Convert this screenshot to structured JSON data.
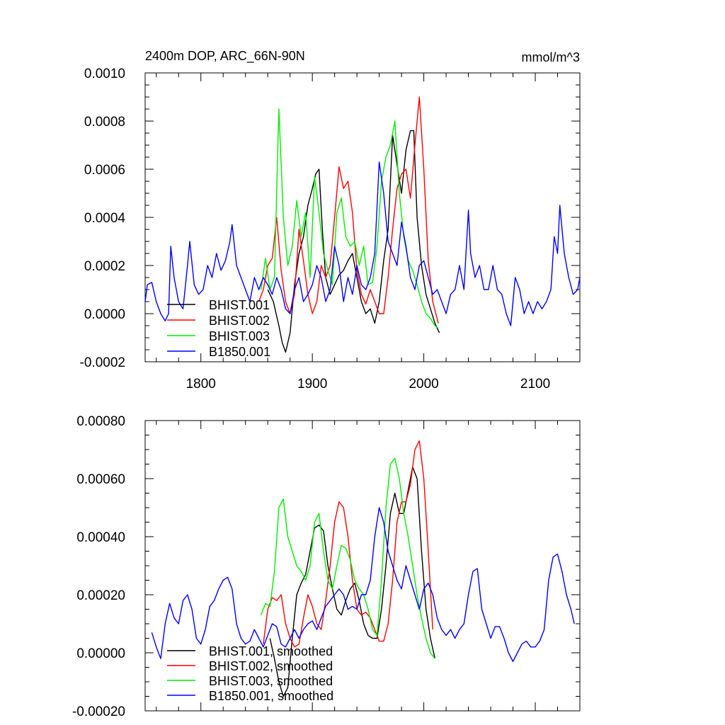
{
  "chart_data": [
    {
      "type": "line",
      "title": "2400m DOP, ARC_66N-90N",
      "units": "mmol/m^3",
      "xlim": [
        1750,
        2140
      ],
      "ylim": [
        -0.0002,
        0.001
      ],
      "x_ticks": [
        1800,
        1900,
        2000,
        2100
      ],
      "x_tick_labels": [
        "1800",
        "1900",
        "2000",
        "2100"
      ],
      "y_ticks": [
        -0.0002,
        0,
        0.0002,
        0.0004,
        0.0006,
        0.0008,
        0.001
      ],
      "y_tick_labels": [
        "-0.0002",
        "0.0000",
        "0.0002",
        "0.0004",
        "0.0006",
        "0.0008",
        "0.0010"
      ],
      "legend_position": "bottom-left",
      "grid": false,
      "series": [
        {
          "name": "BHIST.001",
          "color": "#000000",
          "x": [
            1860,
            1865,
            1870,
            1873,
            1876,
            1880,
            1884,
            1888,
            1892,
            1896,
            1900,
            1903,
            1906,
            1909,
            1912,
            1916,
            1920,
            1924,
            1928,
            1932,
            1936,
            1940,
            1944,
            1948,
            1952,
            1956,
            1960,
            1964,
            1968,
            1972,
            1976,
            1980,
            1984,
            1988,
            1991,
            1994,
            1998,
            2002,
            2006,
            2010,
            2014
          ],
          "y": [
            0.0001,
            5e-05,
            -5e-05,
            -0.00012,
            -0.00016,
            -8e-05,
            0.00012,
            0.00025,
            0.00032,
            0.00045,
            0.00052,
            0.00058,
            0.0006,
            0.00035,
            0.00015,
            8e-05,
            0.00012,
            0.00016,
            0.00018,
            0.00022,
            0.00025,
            0.00015,
            5e-05,
            0.0,
            2e-05,
            -4e-05,
            5e-05,
            0.00022,
            0.00035,
            0.00074,
            0.00062,
            0.0005,
            0.00068,
            0.00076,
            0.00076,
            0.0004,
            0.0002,
            8e-05,
            2e-05,
            -4e-05,
            -8e-05
          ]
        },
        {
          "name": "BHIST.002",
          "color": "#ff0000",
          "x": [
            1852,
            1856,
            1860,
            1864,
            1868,
            1872,
            1876,
            1880,
            1884,
            1888,
            1892,
            1896,
            1900,
            1904,
            1908,
            1912,
            1916,
            1920,
            1924,
            1928,
            1932,
            1936,
            1940,
            1944,
            1948,
            1952,
            1956,
            1960,
            1964,
            1968,
            1972,
            1976,
            1980,
            1984,
            1988,
            1992,
            1996,
            2000,
            2004,
            2008,
            2013
          ],
          "y": [
            5e-05,
            0.0001,
            0.0002,
            0.00023,
            0.0004,
            0.00018,
            5e-05,
            0.0,
            8e-05,
            0.00035,
            0.00022,
            8e-05,
            0.0,
            5e-05,
            0.0002,
            0.00015,
            0.0002,
            0.0004,
            0.00061,
            0.00052,
            0.00055,
            0.00042,
            0.00018,
            8e-05,
            4e-05,
            0.0001,
            5e-05,
            0.0,
            0.0,
            0.00015,
            0.00035,
            0.00052,
            0.00058,
            0.0006,
            0.00048,
            0.0007,
            0.0009,
            0.0006,
            0.00022,
            5e-05,
            -4e-05
          ]
        },
        {
          "name": "BHIST.003",
          "color": "#00ee00",
          "x": [
            1854,
            1858,
            1862,
            1866,
            1870,
            1874,
            1878,
            1882,
            1886,
            1890,
            1894,
            1898,
            1902,
            1906,
            1910,
            1914,
            1918,
            1922,
            1926,
            1930,
            1934,
            1938,
            1942,
            1946,
            1950,
            1954,
            1958,
            1962,
            1966,
            1970,
            1974,
            1978,
            1982,
            1986,
            1990,
            1994,
            1998,
            2002,
            2006,
            2010,
            2013
          ],
          "y": [
            0.0001,
            0.00023,
            0.0001,
            0.00015,
            0.00085,
            0.0004,
            0.0002,
            0.00028,
            0.00047,
            0.00032,
            0.00042,
            0.00015,
            0.00057,
            0.00042,
            0.00025,
            0.00018,
            0.00012,
            0.00042,
            0.00048,
            0.00032,
            0.00028,
            0.0003,
            0.0002,
            0.00028,
            0.00012,
            0.00013,
            0.00028,
            0.00055,
            0.00065,
            0.0007,
            0.0008,
            0.0005,
            0.00032,
            0.00022,
            0.00018,
            0.00012,
            5e-05,
            0.0,
            -2e-05,
            -5e-05,
            -6e-05
          ]
        },
        {
          "name": "B1850.001",
          "color": "#0000ff",
          "x": [
            1750,
            1752,
            1756,
            1760,
            1764,
            1768,
            1771,
            1773,
            1776,
            1780,
            1784,
            1788,
            1790,
            1794,
            1798,
            1802,
            1806,
            1810,
            1814,
            1818,
            1822,
            1826,
            1828,
            1832,
            1836,
            1840,
            1844,
            1848,
            1852,
            1856,
            1860,
            1864,
            1868,
            1872,
            1876,
            1880,
            1884,
            1888,
            1892,
            1896,
            1900,
            1904,
            1908,
            1912,
            1916,
            1920,
            1924,
            1928,
            1932,
            1936,
            1940,
            1944,
            1948,
            1952,
            1956,
            1960,
            1964,
            1968,
            1972,
            1976,
            1980,
            1984,
            1988,
            1992,
            1996,
            2000,
            2004,
            2008,
            2012,
            2016,
            2020,
            2024,
            2028,
            2032,
            2036,
            2040,
            2042,
            2046,
            2050,
            2054,
            2058,
            2062,
            2066,
            2070,
            2074,
            2078,
            2082,
            2086,
            2090,
            2094,
            2098,
            2102,
            2106,
            2110,
            2114,
            2117,
            2120,
            2122,
            2126,
            2130,
            2134,
            2138,
            2140
          ],
          "y": [
            5e-05,
            0.00012,
            0.00013,
            5e-05,
            0.0,
            -3e-05,
            0.0,
            0.00028,
            0.00015,
            5e-05,
            2e-05,
            0.0002,
            0.0003,
            0.00012,
            8e-05,
            0.0001,
            0.0002,
            0.00015,
            0.00025,
            0.00018,
            0.00022,
            0.0003,
            0.00037,
            0.0002,
            0.00015,
            0.0001,
            5e-05,
            0.00015,
            0.0001,
            0.00015,
            0.00012,
            8e-05,
            0.00015,
            0.0001,
            2e-05,
            0.0,
            0.0001,
            0.00015,
            5e-05,
            8e-05,
            0.00012,
            0.0002,
            0.00015,
            5e-05,
            0.0001,
            0.00028,
            0.0002,
            5e-05,
            0.00015,
            8e-05,
            0.0002,
            0.00012,
            0.0001,
            0.00015,
            0.00025,
            0.00063,
            0.0005,
            0.0003,
            0.00025,
            0.0002,
            0.00038,
            0.00028,
            0.00015,
            0.0001,
            0.0002,
            0.00022,
            0.00015,
            8e-05,
            0.0001,
            5e-05,
            0.0,
            8e-05,
            0.0001,
            0.0002,
            0.0001,
            0.00043,
            0.00025,
            0.00015,
            0.0002,
            0.0001,
            0.0001,
            0.0002,
            0.0001,
            8e-05,
            0.0,
            -5e-05,
            0.00015,
            0.0001,
            0.0,
            5e-05,
            0.0,
            5e-05,
            2e-05,
            5e-05,
            0.0001,
            0.00032,
            0.00025,
            0.00045,
            0.00025,
            0.00015,
            8e-05,
            0.0001,
            0.00015
          ]
        }
      ]
    },
    {
      "type": "line",
      "title": "",
      "xlim": [
        1750,
        2140
      ],
      "ylim": [
        -0.0002,
        0.0008
      ],
      "x_ticks": [
        1800,
        1900,
        2000,
        2100
      ],
      "x_tick_labels": [
        "",
        "",
        "",
        ""
      ],
      "y_ticks": [
        -0.0002,
        0,
        0.0002,
        0.0004,
        0.0006,
        0.0008
      ],
      "y_tick_labels": [
        "-0.00020",
        "0.00000",
        "0.00020",
        "0.00040",
        "0.00060",
        "0.00080"
      ],
      "legend_position": "bottom-left",
      "grid": false,
      "series": [
        {
          "name": "BHIST.001, smoothed",
          "color": "#000000",
          "x": [
            1862,
            1866,
            1870,
            1874,
            1878,
            1882,
            1886,
            1890,
            1894,
            1898,
            1902,
            1906,
            1910,
            1914,
            1918,
            1922,
            1926,
            1930,
            1934,
            1938,
            1942,
            1946,
            1950,
            1954,
            1958,
            1962,
            1966,
            1970,
            1974,
            1978,
            1982,
            1986,
            1990,
            1994,
            1998,
            2002,
            2006,
            2010
          ],
          "y": [
            5e-05,
            -2e-05,
            -0.0001,
            -0.00015,
            -0.00012,
            5e-05,
            0.0002,
            0.00024,
            0.00027,
            0.00035,
            0.00043,
            0.00044,
            0.00042,
            0.0003,
            0.00022,
            0.00015,
            0.00013,
            0.00018,
            0.00022,
            0.00024,
            0.00018,
            0.0001,
            6e-05,
            5e-05,
            5e-05,
            0.00015,
            0.0003,
            0.00048,
            0.00055,
            0.00048,
            0.00048,
            0.00056,
            0.00064,
            0.0006,
            0.00035,
            0.00015,
            5e-05,
            -2e-05
          ]
        },
        {
          "name": "BHIST.002, smoothed",
          "color": "#ff0000",
          "x": [
            1856,
            1860,
            1864,
            1868,
            1872,
            1876,
            1880,
            1884,
            1888,
            1892,
            1896,
            1900,
            1904,
            1908,
            1912,
            1916,
            1920,
            1924,
            1928,
            1932,
            1936,
            1940,
            1944,
            1948,
            1952,
            1956,
            1960,
            1964,
            1968,
            1972,
            1976,
            1980,
            1984,
            1988,
            1992,
            1996,
            2000,
            2004,
            2008
          ],
          "y": [
            3e-05,
            0.00015,
            0.00019,
            0.00018,
            0.0002,
            0.0001,
            5e-05,
            2e-05,
            3e-05,
            0.00012,
            0.0002,
            0.00016,
            0.0001,
            8e-05,
            0.00018,
            0.0003,
            0.00045,
            0.00052,
            0.0005,
            0.0004,
            0.00025,
            0.00015,
            0.00013,
            0.00014,
            0.00012,
            8e-05,
            4e-05,
            4e-05,
            0.0001,
            0.00025,
            0.00045,
            0.00052,
            0.00052,
            0.00058,
            0.0007,
            0.00073,
            0.0006,
            0.00035,
            8e-05
          ]
        },
        {
          "name": "BHIST.003, smoothed",
          "color": "#00ee00",
          "x": [
            1854,
            1858,
            1862,
            1866,
            1870,
            1874,
            1878,
            1882,
            1886,
            1890,
            1894,
            1898,
            1902,
            1906,
            1910,
            1914,
            1918,
            1922,
            1926,
            1930,
            1934,
            1938,
            1942,
            1946,
            1950,
            1954,
            1958,
            1962,
            1966,
            1970,
            1974,
            1978,
            1982,
            1986,
            1990,
            1994,
            1998,
            2002,
            2006,
            2010
          ],
          "y": [
            0.00013,
            0.00017,
            0.00016,
            0.00028,
            0.0005,
            0.00053,
            0.0004,
            0.00035,
            0.0003,
            0.00028,
            0.00025,
            0.0003,
            0.00045,
            0.00048,
            0.00035,
            0.00025,
            0.00022,
            0.0003,
            0.00037,
            0.00036,
            0.00032,
            0.00025,
            0.00022,
            0.0002,
            0.00015,
            8e-05,
            6e-05,
            0.00025,
            0.0005,
            0.00065,
            0.00067,
            0.0006,
            0.00048,
            0.0004,
            0.0003,
            0.0002,
            0.00012,
            5e-05,
            0.0,
            -2e-05
          ]
        },
        {
          "name": "B1850.001, smoothed",
          "color": "#0000ff",
          "x": [
            1756,
            1760,
            1764,
            1768,
            1772,
            1776,
            1780,
            1784,
            1788,
            1792,
            1796,
            1800,
            1804,
            1808,
            1812,
            1816,
            1820,
            1824,
            1828,
            1832,
            1836,
            1840,
            1844,
            1848,
            1852,
            1856,
            1860,
            1864,
            1868,
            1872,
            1876,
            1880,
            1884,
            1888,
            1892,
            1896,
            1900,
            1904,
            1908,
            1912,
            1916,
            1920,
            1924,
            1928,
            1932,
            1936,
            1940,
            1944,
            1948,
            1952,
            1956,
            1960,
            1964,
            1968,
            1972,
            1976,
            1980,
            1984,
            1988,
            1992,
            1996,
            2000,
            2004,
            2008,
            2012,
            2016,
            2020,
            2024,
            2028,
            2032,
            2036,
            2040,
            2044,
            2048,
            2052,
            2056,
            2060,
            2064,
            2068,
            2072,
            2076,
            2080,
            2084,
            2088,
            2092,
            2096,
            2100,
            2104,
            2108,
            2112,
            2116,
            2120,
            2124,
            2128,
            2132,
            2135
          ],
          "y": [
            7e-05,
            2e-05,
            -2e-05,
            0.0001,
            0.00017,
            0.00012,
            0.0001,
            0.00018,
            0.0002,
            0.00015,
            5e-05,
            3e-05,
            8e-05,
            0.00016,
            0.00018,
            0.00022,
            0.00025,
            0.00026,
            0.00022,
            0.0001,
            5e-05,
            3e-05,
            4e-05,
            8e-05,
            5e-05,
            2e-05,
            6e-05,
            0.0001,
            9e-05,
            3e-05,
            2e-05,
            5e-05,
            8e-05,
            5e-05,
            8e-05,
            0.0001,
            0.00011,
            8e-05,
            0.00012,
            0.00016,
            0.00018,
            0.0002,
            0.00022,
            0.0002,
            0.00015,
            0.00016,
            0.00015,
            0.0002,
            0.0002,
            0.00025,
            0.0004,
            0.0005,
            0.00045,
            0.00035,
            0.0003,
            0.00025,
            0.00022,
            0.0003,
            0.00025,
            0.0002,
            0.00015,
            0.00022,
            0.00024,
            0.0002,
            0.00012,
            8e-05,
            6e-05,
            8e-05,
            5e-05,
            8e-05,
            0.0001,
            0.0002,
            0.00028,
            0.00029,
            0.00015,
            0.0001,
            5e-05,
            9e-05,
            9e-05,
            5e-05,
            0.0,
            -3e-05,
            0.0,
            3e-05,
            4e-05,
            2e-05,
            2e-05,
            4e-05,
            8e-05,
            0.00025,
            0.00033,
            0.00034,
            0.00028,
            0.0002,
            0.00015,
            0.0001
          ]
        }
      ]
    }
  ]
}
